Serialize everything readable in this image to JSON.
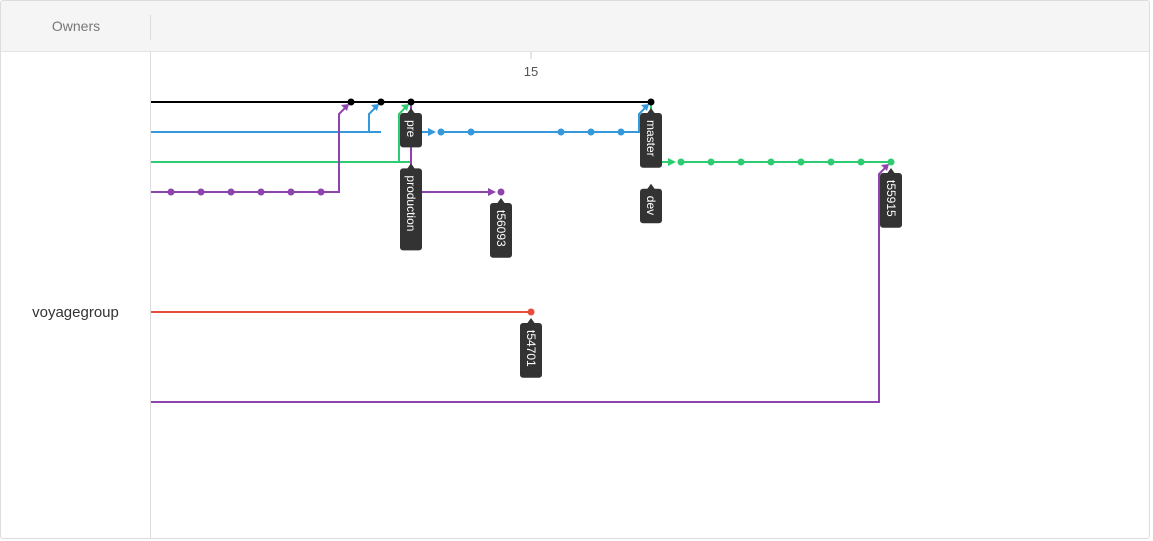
{
  "header": {
    "owners_label": "Owners"
  },
  "owners": [
    {
      "name": "voyagegroup"
    }
  ],
  "timeline": {
    "ticks": [
      {
        "label": "15",
        "col": 12
      }
    ]
  },
  "colors": {
    "black": "#000000",
    "blue": "#3498db",
    "green": "#2ecc71",
    "purple": "#8e44ad",
    "red": "#e74c3c",
    "label_bg": "#333333"
  },
  "branches": [
    {
      "color": "black",
      "row": 0,
      "from_start": true,
      "end_col": 16,
      "commits": [
        6,
        7,
        8,
        16
      ]
    },
    {
      "color": "blue",
      "row": 1,
      "from_start": true,
      "end_col": 7,
      "commits": []
    },
    {
      "color": "green",
      "row": 2,
      "from_start": true,
      "end_col": 8,
      "commits": []
    },
    {
      "color": "purple",
      "row": 3,
      "from_start": true,
      "end_col": 5,
      "commits": [
        0,
        1,
        2,
        3,
        4,
        5
      ]
    },
    {
      "color": "blue",
      "row": 1,
      "from_start": false,
      "end_col": 15,
      "commits": [
        9,
        10,
        13,
        14,
        15
      ]
    },
    {
      "color": "purple",
      "row": 3,
      "from_start": false,
      "end_col": 11,
      "commits": [
        11
      ]
    },
    {
      "color": "green",
      "row": 2,
      "from_start": false,
      "end_col": 24,
      "commits": [
        17,
        18,
        19,
        20,
        21,
        22,
        23,
        24
      ]
    },
    {
      "color": "red",
      "row": 7,
      "from_start": true,
      "end_col": 12,
      "commits": [
        12
      ]
    },
    {
      "color": "purple",
      "row": 10,
      "from_start": true,
      "end_col": 23,
      "commits": []
    }
  ],
  "edges": [
    {
      "color": "purple",
      "from": [
        5,
        3
      ],
      "to": [
        6,
        0
      ]
    },
    {
      "color": "blue",
      "from": [
        6,
        1
      ],
      "to": [
        7,
        0
      ]
    },
    {
      "color": "green",
      "from": [
        7,
        2
      ],
      "to": [
        8,
        0
      ]
    },
    {
      "color": "blue",
      "from": [
        8,
        0
      ],
      "to": [
        9,
        1
      ]
    },
    {
      "color": "purple",
      "from": [
        8,
        0
      ],
      "to": [
        11,
        3
      ]
    },
    {
      "color": "blue",
      "from": [
        15,
        1
      ],
      "to": [
        16,
        0
      ]
    },
    {
      "color": "green",
      "from": [
        16,
        0
      ],
      "to": [
        17,
        2
      ]
    },
    {
      "color": "purple",
      "from": [
        23,
        10
      ],
      "to": [
        24,
        2
      ]
    }
  ],
  "labels": [
    {
      "text": "pre",
      "col": 8,
      "row": 0
    },
    {
      "text": "production",
      "col": 8,
      "row": 0
    },
    {
      "text": "t56093",
      "col": 11,
      "row": 3
    },
    {
      "text": "master",
      "col": 16,
      "row": 0
    },
    {
      "text": "dev",
      "col": 16,
      "row": 0
    },
    {
      "text": "t55915",
      "col": 24,
      "row": 2
    },
    {
      "text": "t54701",
      "col": 12,
      "row": 7
    }
  ]
}
